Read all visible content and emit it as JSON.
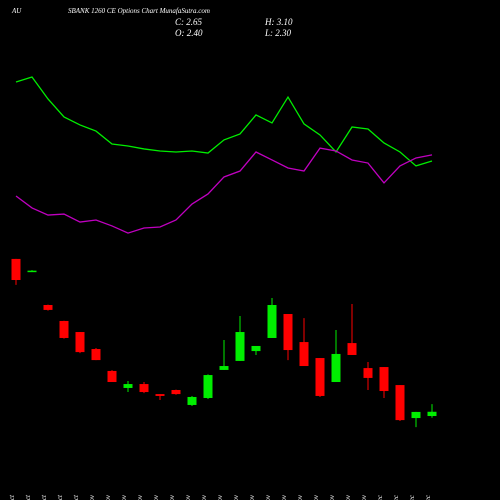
{
  "chart_data": {
    "type": "candlestick",
    "title": "AU",
    "subtitle": "SBANK 1260 CE Options  Chart MunafaSutra.com",
    "info": {
      "close": "C: 2.65",
      "high": "H: 3.10",
      "open": "O: 2.40",
      "low": "L: 2.30"
    },
    "categories": [
      "27 Oct",
      "28 Oct",
      "29 Oct",
      "30 Oct",
      "31 Oct",
      "03 Nov",
      "04 Nov",
      "06 Nov",
      "07 Nov",
      "11 Nov",
      "12 Nov",
      "13 Nov",
      "14 Nov",
      "17 Nov",
      "18 Nov",
      "19 Nov",
      "20 Nov",
      "21 Nov",
      "24 Nov",
      "25 Nov",
      "26 Nov",
      "27 Nov",
      "28 Nov",
      "01 Dec",
      "02 Dec",
      "03 Dec",
      "04 Dec"
    ],
    "open": [
      11.64,
      10.95,
      8.93,
      7.99,
      7.34,
      6.34,
      5.05,
      4.05,
      4.28,
      3.69,
      3.93,
      3.05,
      3.46,
      5.11,
      5.64,
      6.22,
      6.99,
      8.4,
      6.75,
      5.81,
      4.4,
      6.69,
      5.22,
      5.28,
      4.22,
      2.28,
      2.4
    ],
    "high": [
      11.64,
      10.98,
      8.95,
      8.0,
      7.34,
      6.4,
      5.1,
      4.46,
      4.4,
      3.69,
      3.95,
      3.58,
      4.85,
      6.87,
      8.28,
      6.52,
      9.34,
      8.4,
      8.16,
      5.81,
      7.46,
      8.99,
      5.58,
      5.28,
      4.22,
      2.64,
      3.1
    ],
    "low": [
      10.11,
      10.93,
      8.6,
      6.95,
      6.1,
      5.69,
      4.4,
      3.81,
      3.75,
      3.34,
      3.65,
      2.99,
      3.4,
      5.11,
      5.64,
      5.99,
      6.99,
      5.69,
      5.34,
      3.52,
      4.4,
      5.99,
      3.93,
      3.46,
      2.11,
      1.75,
      2.3
    ],
    "close": [
      10.4,
      10.95,
      8.64,
      6.99,
      6.16,
      5.69,
      4.4,
      4.28,
      3.81,
      3.58,
      3.69,
      3.52,
      4.81,
      5.34,
      7.34,
      6.52,
      8.93,
      6.28,
      5.34,
      3.58,
      6.05,
      5.99,
      4.64,
      3.87,
      2.16,
      2.64,
      2.65
    ],
    "up_color": "#00ee00",
    "down_color": "#ff0000",
    "lines": [
      {
        "color": "#00ee00",
        "values": [
          22.05,
          22.34,
          21.05,
          19.99,
          19.52,
          19.16,
          18.4,
          18.28,
          18.11,
          17.99,
          17.93,
          17.99,
          17.87,
          18.64,
          18.99,
          20.11,
          19.64,
          21.16,
          19.58,
          18.93,
          17.93,
          19.4,
          19.28,
          18.46,
          17.93,
          17.11,
          17.4
        ]
      },
      {
        "color": "#c000c0",
        "values": [
          15.34,
          14.64,
          14.22,
          14.28,
          13.81,
          13.93,
          13.58,
          13.16,
          13.46,
          13.52,
          13.93,
          14.87,
          15.46,
          16.46,
          16.81,
          17.93,
          17.46,
          16.99,
          16.81,
          18.16,
          17.99,
          17.46,
          17.28,
          16.11,
          17.11,
          17.58,
          17.76
        ]
      }
    ],
    "ylim": [
      -2.54,
      26.87
    ]
  }
}
